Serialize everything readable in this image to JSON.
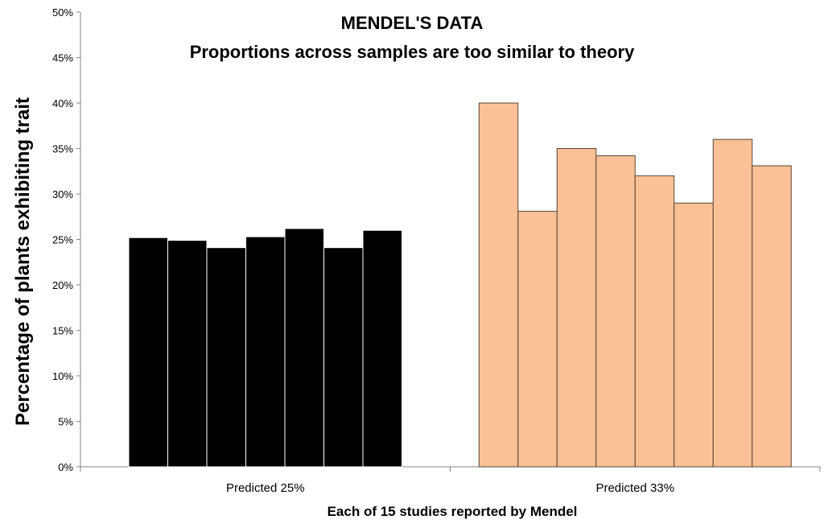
{
  "chart_data": {
    "type": "bar",
    "title": "MENDEL'S DATA",
    "subtitle": "Proportions across samples are too similar to theory",
    "xlabel": "Each of 15 studies reported by Mendel",
    "ylabel": "Percentage of plants exhibiting trait",
    "ylim": [
      0,
      50
    ],
    "yticks": [
      "0%",
      "5%",
      "10%",
      "15%",
      "20%",
      "25%",
      "30%",
      "35%",
      "40%",
      "45%",
      "50%"
    ],
    "grid": false,
    "categories": [
      "Predicted 25%",
      "Predicted 33%"
    ],
    "series_groups": [
      {
        "category": "Predicted 25%",
        "color": "#000000",
        "values": [
          25.2,
          24.9,
          24.1,
          25.3,
          26.2,
          24.1,
          26.0
        ]
      },
      {
        "category": "Predicted 33%",
        "color": "#F9C195",
        "values": [
          40.0,
          28.1,
          35.0,
          34.2,
          32.0,
          29.0,
          36.0,
          33.1
        ]
      }
    ]
  }
}
